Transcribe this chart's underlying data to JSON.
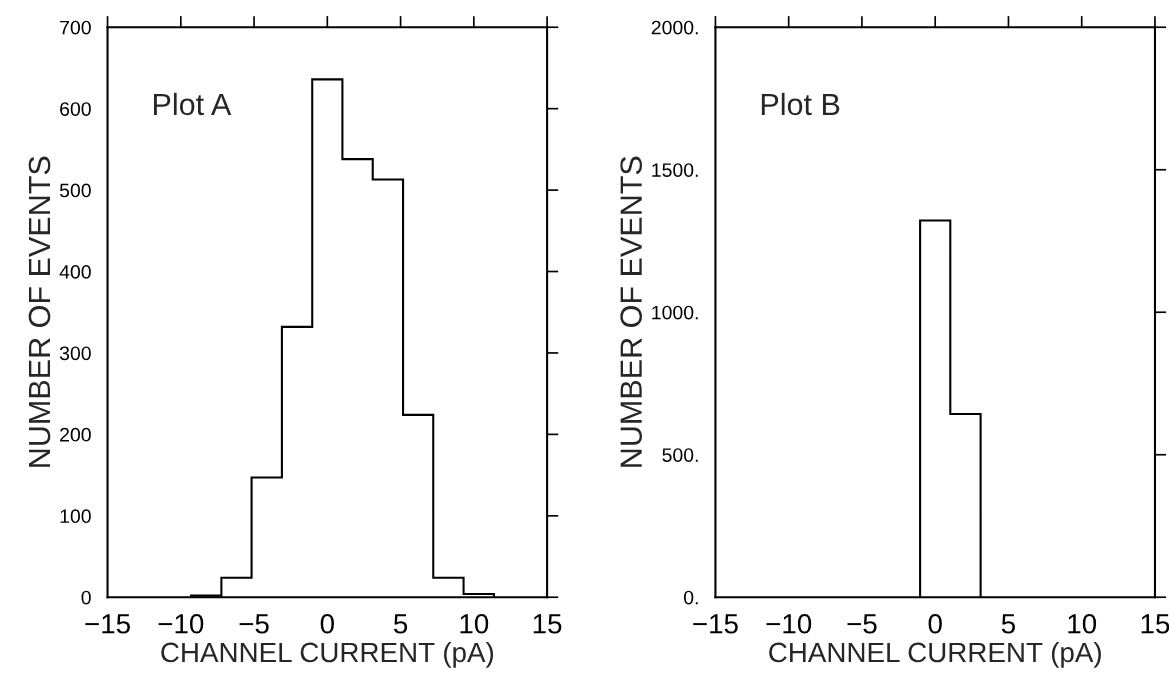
{
  "chart_data": [
    {
      "type": "histogram",
      "xlabel": "CHANNEL CURRENT (pA)",
      "ylabel": "NUMBER OF EVENTS",
      "annotations": [
        "Plot A"
      ],
      "color": "#000000",
      "bins": [
        -9.3,
        -7.23,
        -5.17,
        -3.1,
        -1.03,
        1.03,
        3.1,
        5.17,
        7.23,
        9.3,
        11.37
      ],
      "values": [
        2,
        24,
        147,
        332,
        636,
        538,
        513,
        224,
        24,
        4
      ],
      "xlim": [
        -15,
        15
      ],
      "xticks": [
        {
          "value": -15,
          "label": "−15"
        },
        {
          "value": -10,
          "label": "−10"
        },
        {
          "value": -5,
          "label": "−5"
        },
        0,
        5,
        10,
        15
      ],
      "ylim": [
        0,
        700
      ],
      "yticks": [
        0,
        100,
        200,
        300,
        400,
        500,
        600,
        700
      ]
    },
    {
      "type": "histogram",
      "xlabel": "CHANNEL CURRENT (pA)",
      "ylabel": "NUMBER OF EVENTS",
      "annotations": [
        "Plot B"
      ],
      "color": "#000000",
      "bins": [
        -1.03,
        1.03,
        3.1
      ],
      "values": [
        1322,
        643
      ],
      "xlim": [
        -15,
        15
      ],
      "xticks": [
        {
          "value": -15,
          "label": "−15"
        },
        {
          "value": -10,
          "label": "−10"
        },
        {
          "value": -5,
          "label": "−5"
        },
        0,
        5,
        10,
        15
      ],
      "ylim": [
        0,
        2000
      ],
      "yticks": [
        {
          "value": 0,
          "label": "0."
        },
        {
          "value": 500,
          "label": "500."
        },
        {
          "value": 1000,
          "label": "1000."
        },
        {
          "value": 1500,
          "label": "1500."
        },
        {
          "value": 2000,
          "label": "2000."
        }
      ]
    }
  ]
}
